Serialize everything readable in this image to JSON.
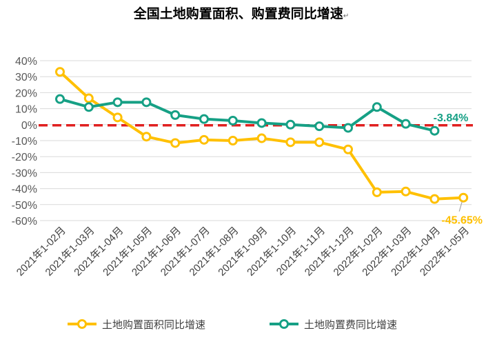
{
  "chart_data": {
    "type": "line",
    "title": "全国土地购置面积、购置费同比增速",
    "title_mark": "↵",
    "categories": [
      "2021年1-02月",
      "2021年1-03月",
      "2021年1-04月",
      "2021年1-05月",
      "2021年1-06月",
      "2021年1-07月",
      "2021年1-08月",
      "2021年1-09月",
      "2021年1-10月",
      "2021年1-11月",
      "2021年1-12月",
      "2022年1-02月",
      "2022年1-03月",
      "2022年1-04月",
      "2022年1-05月"
    ],
    "ylim": [
      -60,
      40
    ],
    "yticks": [
      40,
      30,
      20,
      10,
      0,
      -10,
      -20,
      -30,
      -40,
      -50,
      -60
    ],
    "ytick_labels": [
      "40%",
      "30%",
      "20%",
      "10%",
      "0%",
      "-10%",
      "-20%",
      "-30%",
      "-40%",
      "-50%",
      "-60%"
    ],
    "grid": true,
    "reference_line": {
      "value": 0,
      "color": "#e02020",
      "style": "dashed"
    },
    "legend_position": "bottom",
    "series": [
      {
        "name": "土地购置面积同比增速",
        "color": "#ffc000",
        "values": [
          33.0,
          16.5,
          4.5,
          -7.5,
          -11.5,
          -9.5,
          -10.0,
          -8.5,
          -11.0,
          -11.0,
          -15.5,
          -42.3,
          -41.8,
          -46.5,
          -45.65
        ]
      },
      {
        "name": "土地购置费同比增速",
        "color": "#16a085",
        "values": [
          16.0,
          11.0,
          14.0,
          14.0,
          6.0,
          3.5,
          2.5,
          1.0,
          0.0,
          -1.0,
          -2.0,
          11.0,
          0.5,
          -3.84,
          null
        ]
      }
    ],
    "annotations": [
      {
        "series": 1,
        "index": 13,
        "text": "-3.84%"
      },
      {
        "series": 0,
        "index": 14,
        "text": "-45.65%"
      }
    ]
  }
}
